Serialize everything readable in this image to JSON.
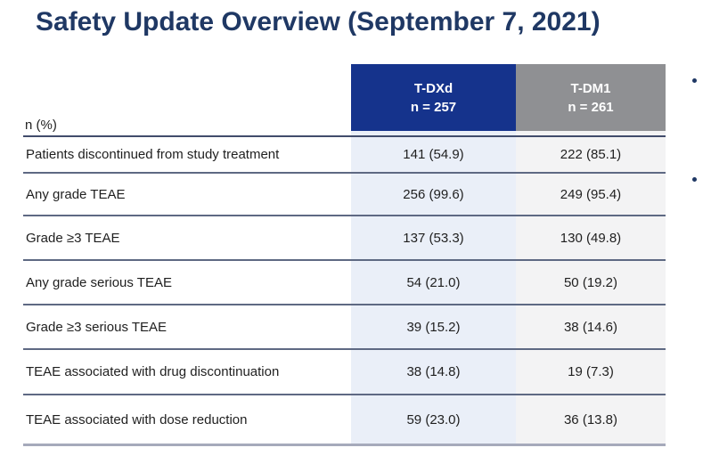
{
  "slide": {
    "title": "Safety Update Overview (September 7, 2021)"
  },
  "table": {
    "corner_label": "n (%)",
    "columns": [
      {
        "name": "T-DXd",
        "n_label": "n = 257"
      },
      {
        "name": "T-DM1",
        "n_label": "n = 261"
      }
    ],
    "rows": [
      {
        "label": "Patients discontinued from study treatment",
        "tdxd": "141 (54.9)",
        "tdm1": "222 (85.1)"
      },
      {
        "label": "Any grade TEAE",
        "tdxd": "256 (99.6)",
        "tdm1": "249 (95.4)"
      },
      {
        "label": "Grade ≥3 TEAE",
        "tdxd": "137 (53.3)",
        "tdm1": "130 (49.8)"
      },
      {
        "label": "Any grade serious TEAE",
        "tdxd": "54 (21.0)",
        "tdm1": "50 (19.2)"
      },
      {
        "label": "Grade ≥3 serious TEAE",
        "tdxd": "39 (15.2)",
        "tdm1": "38 (14.6)"
      },
      {
        "label": "TEAE associated with drug discontinuation",
        "tdxd": "38 (14.8)",
        "tdm1": "19 (7.3)"
      },
      {
        "label": "TEAE associated with dose reduction",
        "tdxd": "59 (23.0)",
        "tdm1": "36 (13.8)"
      }
    ]
  },
  "side_bullets": {
    "count": 2,
    "marker": "•"
  },
  "colors": {
    "title_navy": "#1F3864",
    "header_blue": "#15338C",
    "header_gray": "#8F9093",
    "tdxd_column_tint": "#EAEFF8",
    "tdm1_column_tint": "#F3F3F4",
    "separator": "#5E6983",
    "bullet_navy": "#1F3864"
  }
}
